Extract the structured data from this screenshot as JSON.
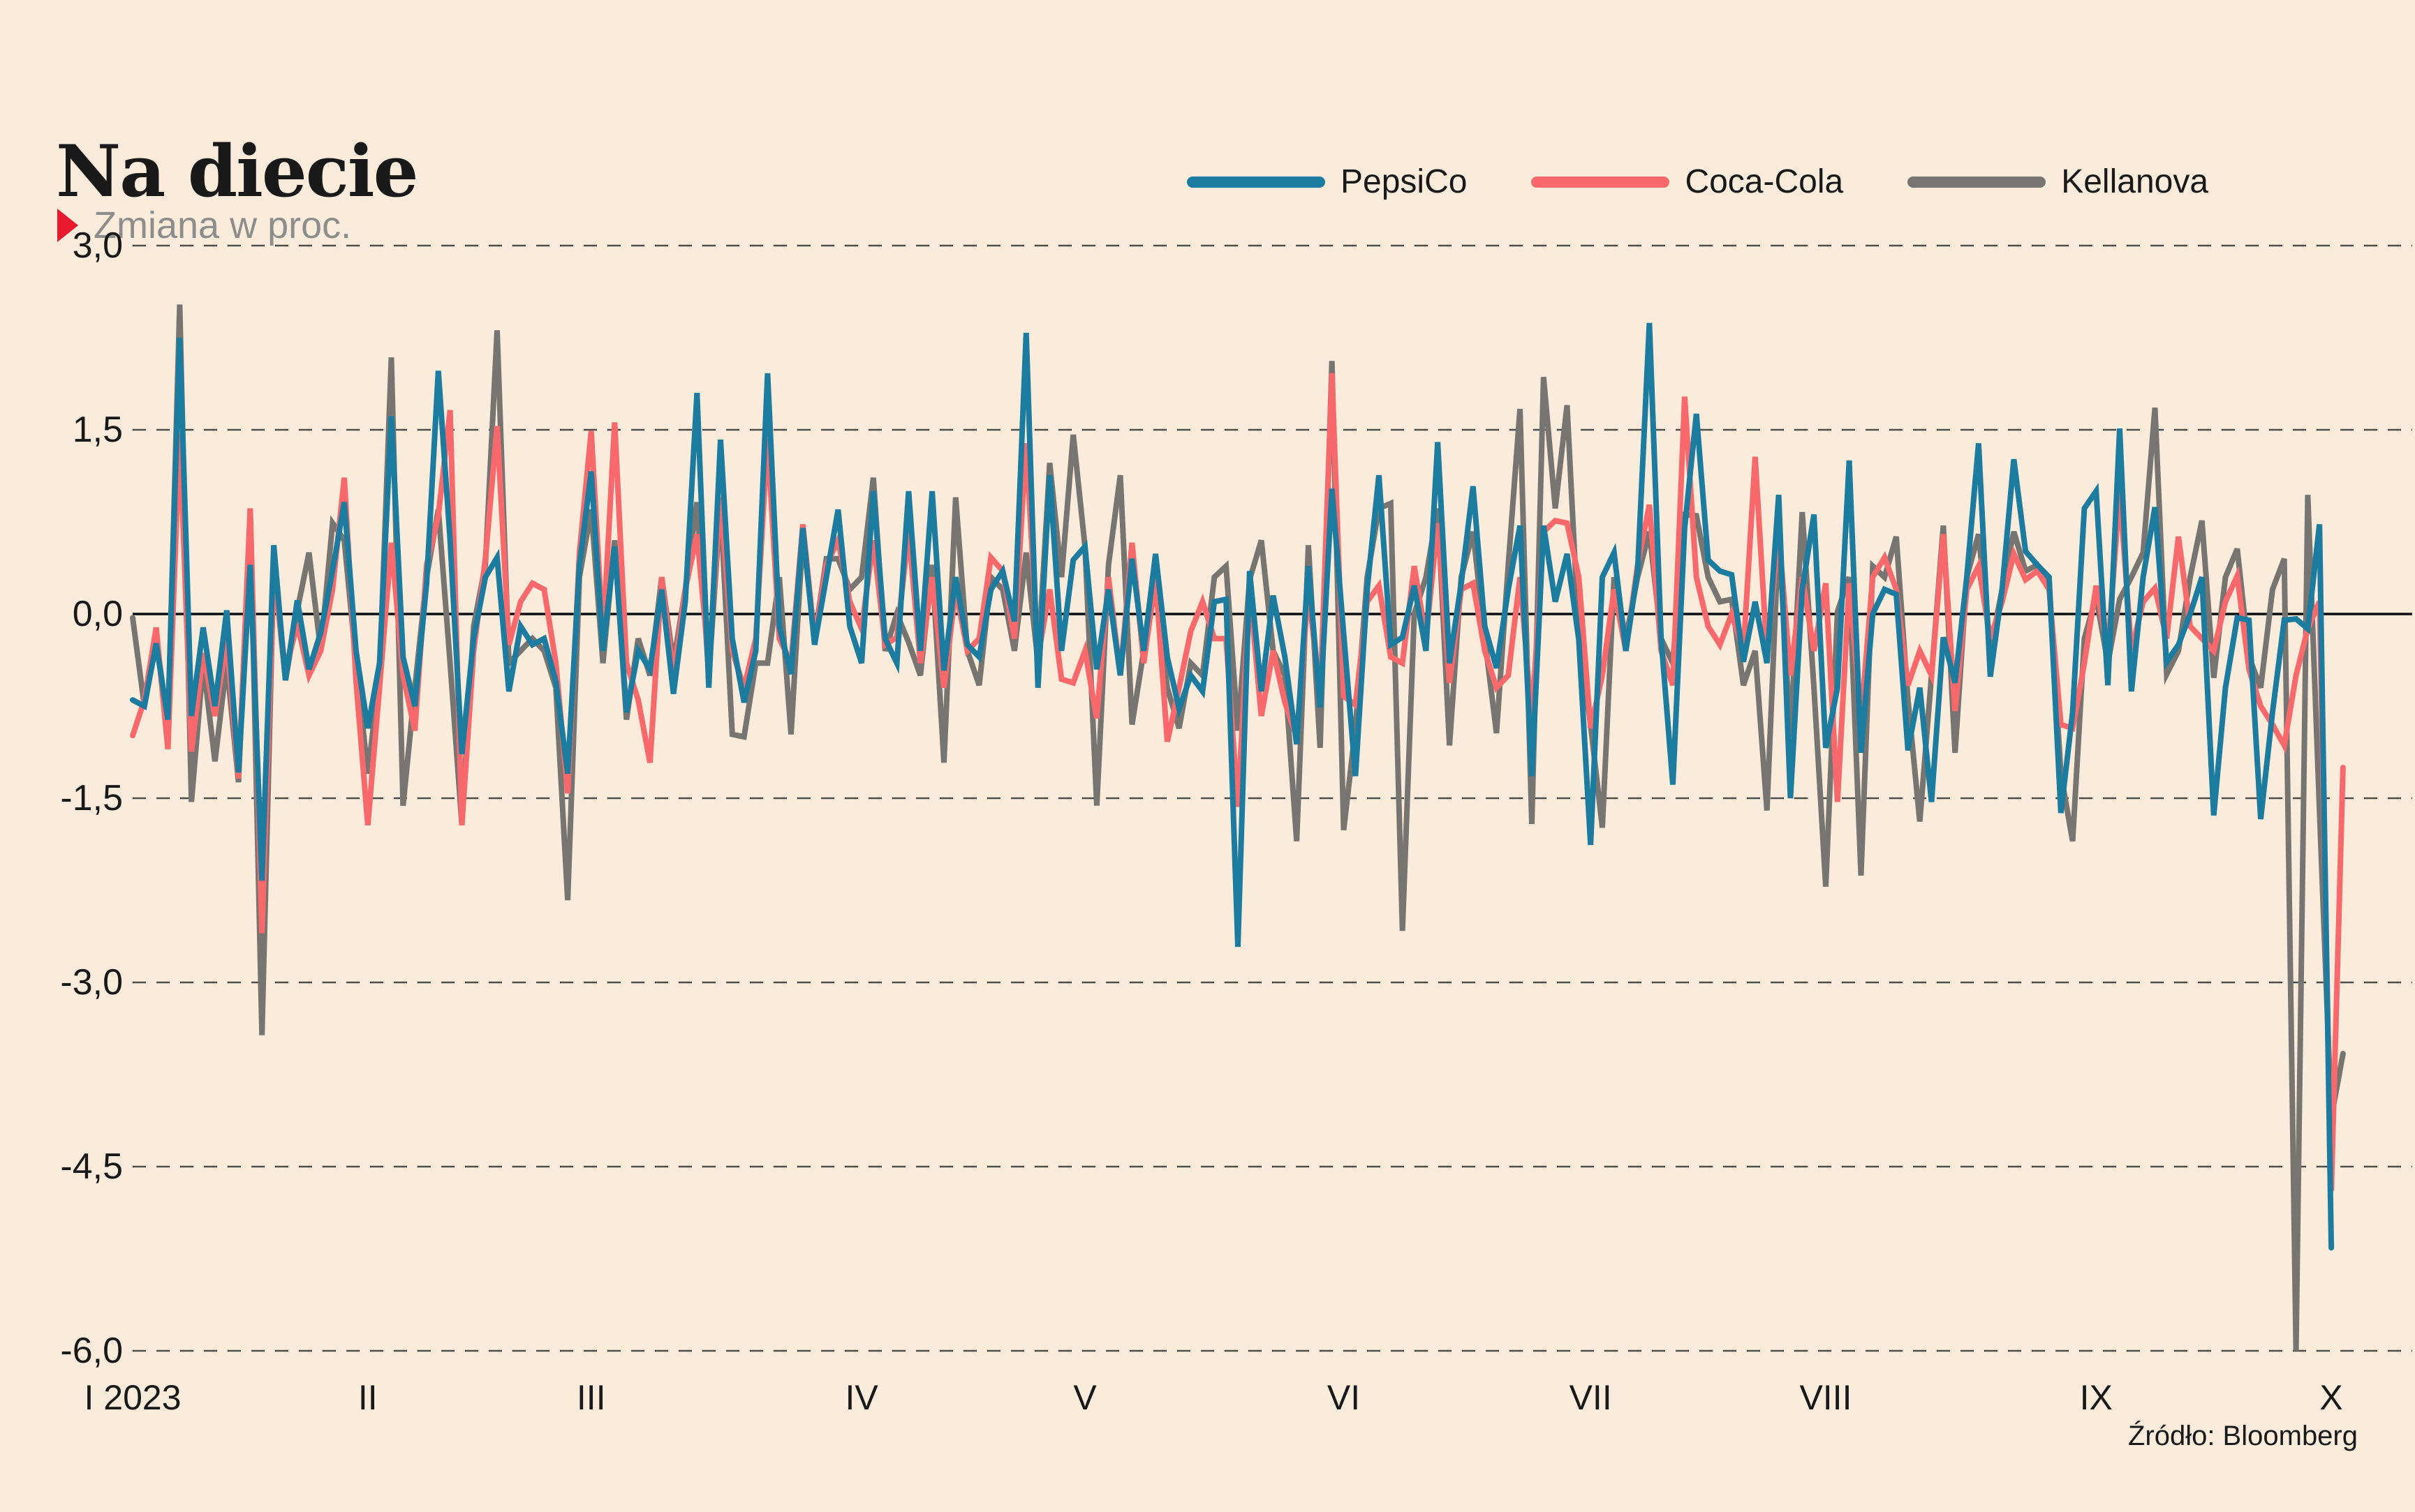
{
  "title": "Na diecie",
  "subtitle": "Zmiana w proc.",
  "source": "Źródło: Bloomberg",
  "colors": {
    "background": "#fbebdb",
    "text": "#191919",
    "subtitle_text": "#8d8d8b",
    "accent_red": "#e8192c",
    "grid": "#4d4b46",
    "zero_line": "#0d0d0d",
    "pepsico": "#1b7ca0",
    "cocacola": "#f9696c",
    "kellanova": "#767571"
  },
  "legend": [
    {
      "label": "PepsiCo",
      "color": "#1b7ca0"
    },
    {
      "label": "Coca-Cola",
      "color": "#f9696c"
    },
    {
      "label": "Kellanova",
      "color": "#767571"
    }
  ],
  "chart_data": {
    "type": "line",
    "title": "Na diecie",
    "ylabel": "Zmiana w proc.",
    "x_unit": "trading day, daily close-to-close change",
    "x_range": "I 2023 – X 2023",
    "ylim": [
      -6.3,
      3.0
    ],
    "grid": "horizontal dashed, solid line at 0",
    "legend_position": "top-right",
    "yticks": {
      "values": [
        3.0,
        1.5,
        0.0,
        -1.5,
        -3.0,
        -4.5,
        -6.0
      ],
      "labels": [
        "3,0",
        "1,5",
        "0,0",
        "-1,5",
        "-3,0",
        "-4,5",
        "-6,0"
      ]
    },
    "xticks": {
      "day_indices": [
        0,
        20,
        39,
        62,
        81,
        103,
        124,
        144,
        167,
        187
      ],
      "labels": [
        "I 2023",
        "II",
        "III",
        "IV",
        "V",
        "VI",
        "VII",
        "VIII",
        "IX",
        "X"
      ]
    },
    "series": [
      {
        "name": "PepsiCo",
        "color": "#1b7ca0",
        "values": [
          -0.7,
          -0.75,
          -0.24,
          -0.86,
          2.25,
          -0.83,
          -0.11,
          -0.75,
          0.03,
          -1.29,
          0.4,
          -2.17,
          0.56,
          -0.54,
          0.11,
          -0.45,
          -0.15,
          0.35,
          0.91,
          -0.3,
          -0.93,
          -0.4,
          1.61,
          -0.35,
          -0.75,
          0.25,
          1.98,
          0.6,
          -1.14,
          -0.2,
          0.3,
          0.46,
          -0.63,
          -0.1,
          -0.25,
          -0.2,
          -0.55,
          -1.3,
          0.4,
          1.16,
          -0.3,
          0.55,
          -0.8,
          -0.3,
          -0.45,
          0.2,
          -0.65,
          0.1,
          1.8,
          -0.6,
          1.42,
          -0.2,
          -0.72,
          -0.3,
          1.96,
          -0.1,
          -0.49,
          0.7,
          -0.25,
          0.3,
          0.85,
          -0.1,
          -0.4,
          1.0,
          -0.2,
          -0.4,
          1.0,
          -0.3,
          1.0,
          -0.46,
          0.3,
          -0.25,
          -0.35,
          0.2,
          0.35,
          -0.06,
          2.29,
          -0.6,
          1.13,
          -0.3,
          0.44,
          0.55,
          -0.45,
          0.2,
          -0.5,
          0.45,
          -0.3,
          0.49,
          -0.35,
          -0.77,
          -0.5,
          -0.63,
          0.1,
          0.12,
          -2.71,
          0.35,
          -0.63,
          0.15,
          -0.35,
          -1.06,
          0.39,
          -0.76,
          1.02,
          -0.16,
          -1.32,
          0.2,
          1.13,
          -0.25,
          -0.19,
          0.23,
          -0.3,
          1.4,
          -0.4,
          0.25,
          1.04,
          -0.1,
          -0.44,
          0.2,
          0.72,
          -1.32,
          0.72,
          0.1,
          0.49,
          -0.21,
          -1.88,
          0.3,
          0.5,
          -0.3,
          0.35,
          2.37,
          -0.2,
          -1.39,
          0.7,
          1.63,
          0.44,
          0.35,
          0.32,
          -0.39,
          0.1,
          -0.4,
          0.97,
          -1.5,
          0.2,
          0.81,
          -1.09,
          -0.6,
          1.25,
          -1.13,
          0.0,
          0.2,
          0.16,
          -1.11,
          -0.6,
          -1.53,
          -0.19,
          -0.56,
          0.3,
          1.39,
          -0.51,
          0.2,
          1.26,
          0.51,
          0.4,
          0.3,
          -1.62,
          -0.8,
          0.86,
          1.0,
          -0.58,
          1.51,
          -0.63,
          0.3,
          0.87,
          -0.39,
          -0.25,
          0.0,
          0.3,
          -1.64,
          -0.6,
          -0.03,
          -0.05,
          -1.67,
          -0.8,
          -0.05,
          -0.04,
          -0.12,
          0.73,
          -5.16,
          null
        ]
      },
      {
        "name": "Coca-Cola",
        "color": "#f9696c",
        "values": [
          -0.99,
          -0.7,
          -0.11,
          -1.1,
          1.47,
          -1.12,
          -0.32,
          -0.83,
          -0.21,
          -1.34,
          0.86,
          -2.6,
          0.35,
          -0.46,
          -0.08,
          -0.5,
          -0.3,
          0.2,
          1.11,
          -0.55,
          -1.72,
          -0.6,
          0.58,
          -0.5,
          -0.95,
          0.4,
          0.8,
          1.66,
          -1.72,
          -0.3,
          0.45,
          1.53,
          -0.25,
          0.1,
          0.25,
          0.2,
          -0.4,
          -1.46,
          0.5,
          1.49,
          -0.2,
          1.56,
          -0.4,
          -0.7,
          -1.21,
          0.3,
          -0.5,
          0.2,
          0.65,
          -0.4,
          0.95,
          -0.3,
          -0.6,
          -0.2,
          1.43,
          -0.2,
          -0.4,
          0.73,
          -0.2,
          0.4,
          0.6,
          0.1,
          -0.12,
          0.6,
          -0.25,
          -0.19,
          0.67,
          -0.4,
          0.3,
          -0.6,
          0.2,
          -0.3,
          -0.2,
          0.46,
          0.35,
          -0.2,
          1.39,
          -0.35,
          0.2,
          -0.53,
          -0.56,
          -0.3,
          -0.85,
          0.3,
          -0.5,
          0.58,
          -0.4,
          0.3,
          -1.04,
          -0.6,
          -0.14,
          0.1,
          -0.2,
          -0.2,
          -1.57,
          0.2,
          -0.83,
          -0.3,
          -0.72,
          -1.0,
          0.2,
          -0.69,
          1.96,
          -0.67,
          -0.74,
          0.1,
          0.23,
          -0.35,
          -0.4,
          0.39,
          -0.2,
          0.74,
          -0.56,
          0.2,
          0.25,
          -0.3,
          -0.6,
          -0.5,
          0.3,
          -0.86,
          0.67,
          0.76,
          0.74,
          0.3,
          -0.93,
          -0.5,
          0.2,
          -0.3,
          0.4,
          0.89,
          -0.3,
          -0.58,
          1.77,
          0.3,
          -0.1,
          -0.25,
          0.0,
          -0.3,
          1.28,
          -0.32,
          0.67,
          -0.5,
          0.3,
          -0.3,
          0.25,
          -1.53,
          0.25,
          -0.86,
          0.3,
          0.46,
          0.2,
          -0.58,
          -0.3,
          -0.5,
          0.65,
          -0.79,
          0.2,
          0.39,
          -0.2,
          0.1,
          0.49,
          0.28,
          0.35,
          0.2,
          -0.9,
          -0.93,
          -0.4,
          0.23,
          -0.3,
          1.0,
          -0.3,
          0.1,
          0.21,
          -0.2,
          0.63,
          -0.1,
          -0.2,
          -0.3,
          0.1,
          0.31,
          -0.45,
          -0.75,
          -0.9,
          -1.07,
          -0.5,
          -0.12,
          0.1,
          -4.7,
          -1.25
        ]
      },
      {
        "name": "Kellanova",
        "color": "#767571",
        "values": [
          -0.03,
          -0.75,
          -0.19,
          -0.91,
          2.52,
          -1.53,
          -0.4,
          -1.2,
          -0.4,
          -1.37,
          0.83,
          -3.43,
          0.4,
          -0.54,
          0.03,
          0.5,
          -0.3,
          0.74,
          0.6,
          -0.4,
          -1.3,
          -0.5,
          2.09,
          -1.56,
          -0.6,
          0.3,
          0.85,
          -0.4,
          -1.71,
          -0.1,
          0.4,
          2.31,
          -0.4,
          -0.3,
          -0.2,
          -0.3,
          -0.6,
          -2.33,
          0.3,
          0.85,
          -0.4,
          0.6,
          -0.86,
          -0.2,
          -0.5,
          0.3,
          -0.4,
          0.2,
          0.91,
          -0.5,
          0.9,
          -0.98,
          -1.0,
          -0.4,
          -0.4,
          0.3,
          -0.98,
          0.65,
          -0.2,
          0.45,
          0.45,
          0.2,
          0.3,
          1.11,
          -0.3,
          0.0,
          -0.23,
          -0.5,
          0.4,
          -1.21,
          0.95,
          -0.3,
          -0.58,
          0.3,
          0.2,
          -0.3,
          0.5,
          -0.4,
          1.23,
          0.3,
          1.46,
          0.55,
          -1.56,
          0.4,
          1.13,
          -0.9,
          -0.3,
          0.23,
          -0.6,
          -0.93,
          -0.4,
          -0.5,
          0.3,
          0.39,
          -0.95,
          0.28,
          0.6,
          -0.3,
          -0.5,
          -1.85,
          0.56,
          -1.09,
          2.06,
          -1.76,
          -0.93,
          0.3,
          0.86,
          0.9,
          -2.58,
          0.0,
          0.3,
          0.86,
          -1.07,
          0.3,
          0.67,
          -0.2,
          -0.97,
          0.4,
          1.67,
          -1.71,
          1.93,
          0.86,
          1.7,
          -0.19,
          -0.9,
          -1.74,
          0.3,
          -0.2,
          0.3,
          0.67,
          -0.2,
          -0.4,
          0.81,
          0.8,
          0.3,
          0.1,
          0.12,
          -0.58,
          -0.3,
          -1.6,
          0.67,
          -1.0,
          0.83,
          -0.6,
          -2.22,
          0.02,
          0.3,
          -2.13,
          0.39,
          0.3,
          0.63,
          -0.7,
          -1.69,
          -0.5,
          0.72,
          -1.13,
          0.3,
          0.65,
          -0.3,
          0.2,
          0.67,
          0.35,
          0.4,
          0.25,
          -1.3,
          -1.85,
          -0.2,
          0.14,
          -0.4,
          0.12,
          0.3,
          0.5,
          1.68,
          -0.49,
          -0.3,
          0.3,
          0.76,
          -0.52,
          0.3,
          0.53,
          -0.35,
          -0.6,
          0.2,
          0.45,
          -6.0,
          0.97,
          -1.6,
          -4.1,
          -3.58
        ]
      }
    ]
  }
}
